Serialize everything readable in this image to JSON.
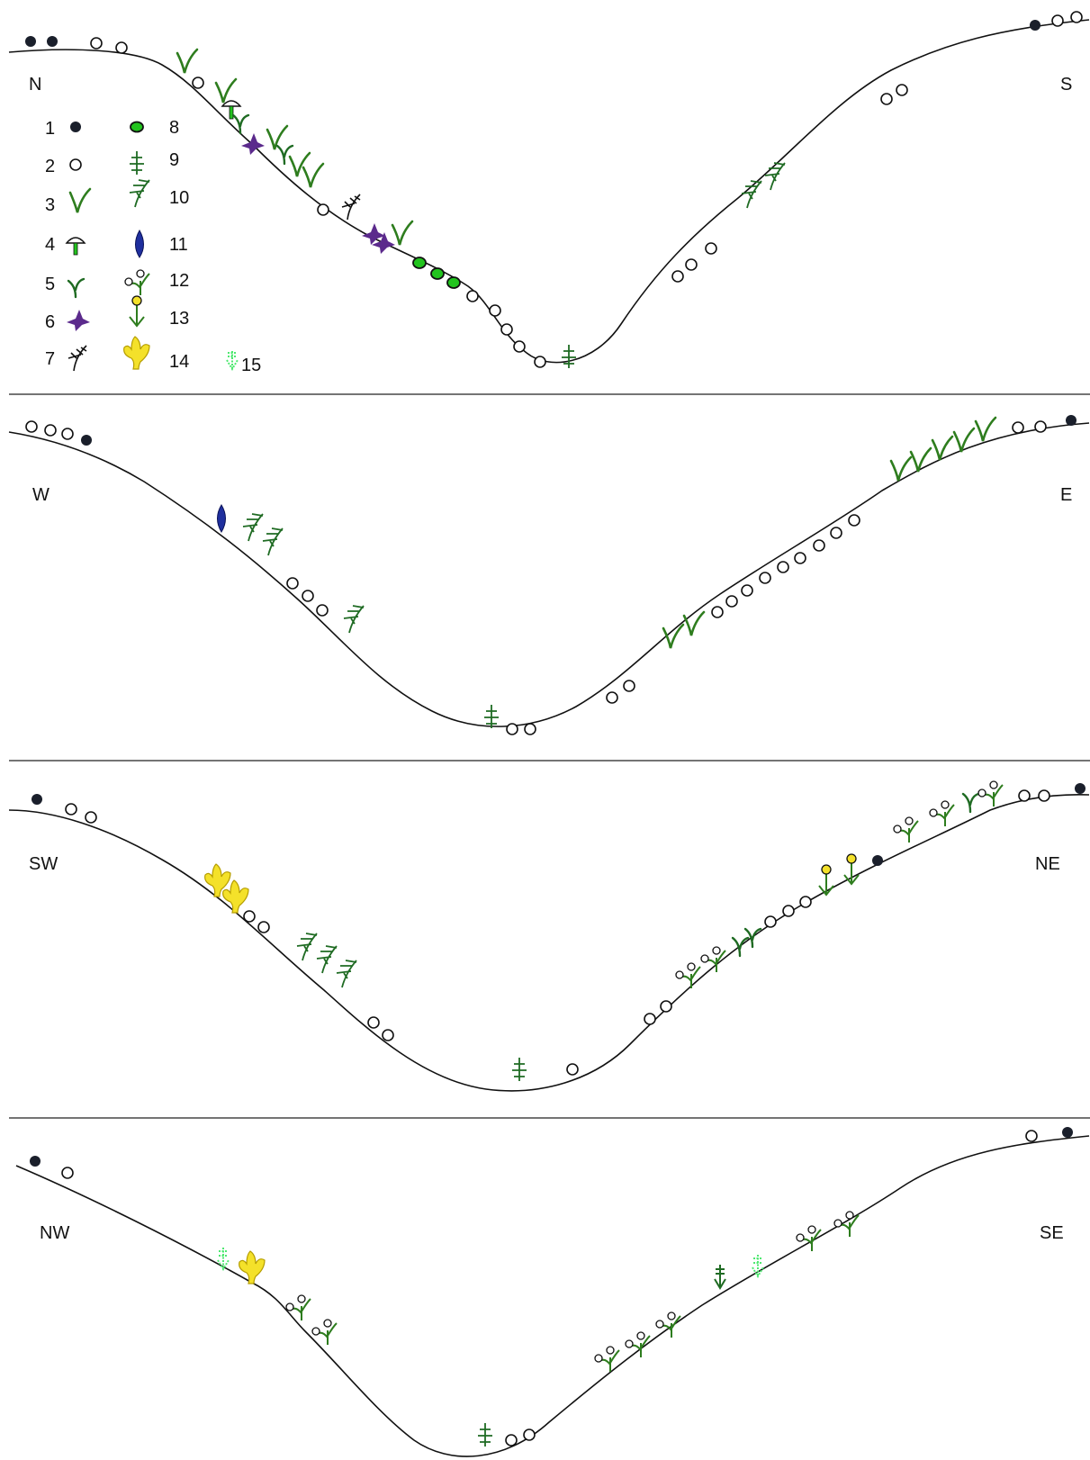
{
  "colors": {
    "stone_dark": "#1a1f2b",
    "grass": "#2e7d1e",
    "dark_green": "#1f6b23",
    "violet": "#5b2a8c",
    "blue": "#1f2f9e",
    "bright_green": "#22c41e",
    "yellow": "#f4e12a",
    "mint": "#4ee870",
    "black": "#111111"
  },
  "panels": [
    {
      "left_label": "N",
      "right_label": "S"
    },
    {
      "left_label": "W",
      "right_label": "E"
    },
    {
      "left_label": "SW",
      "right_label": "NE"
    },
    {
      "left_label": "NW",
      "right_label": "SE"
    }
  ],
  "legend": {
    "items": [
      {
        "number": "1",
        "icon": "dark-stone-icon"
      },
      {
        "number": "2",
        "icon": "light-stone-icon"
      },
      {
        "number": "3",
        "icon": "grass-tuft-icon"
      },
      {
        "number": "4",
        "icon": "mushroom-icon"
      },
      {
        "number": "5",
        "icon": "sprout-icon"
      },
      {
        "number": "6",
        "icon": "violet-flower-icon"
      },
      {
        "number": "7",
        "icon": "dry-twig-icon"
      },
      {
        "number": "8",
        "icon": "green-moss-ball-icon"
      },
      {
        "number": "9",
        "icon": "small-fir-icon"
      },
      {
        "number": "10",
        "icon": "fern-icon"
      },
      {
        "number": "11",
        "icon": "blue-leaf-icon"
      },
      {
        "number": "12",
        "icon": "white-flower-plant-icon"
      },
      {
        "number": "13",
        "icon": "yellow-flower-plant-icon"
      },
      {
        "number": "14",
        "icon": "yellow-lobed-leaf-icon"
      },
      {
        "number": "15",
        "icon": "light-green-horsetail-icon"
      }
    ]
  }
}
